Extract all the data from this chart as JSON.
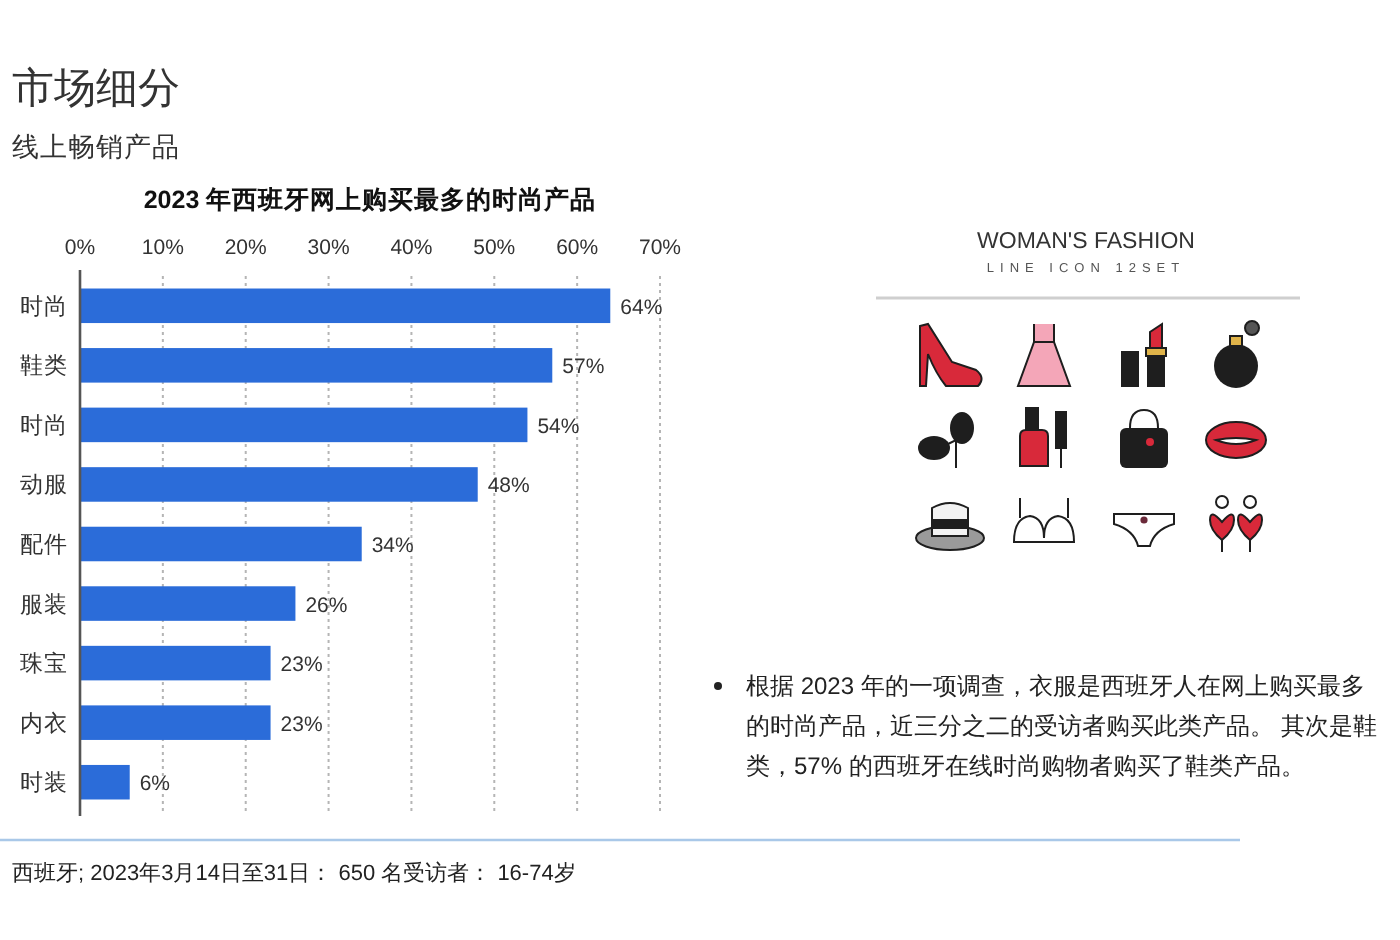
{
  "chart_data": {
    "type": "bar",
    "orientation": "horizontal",
    "title": "2023 年西班牙网上购买最多的时尚产品",
    "categories": [
      "时尚",
      "鞋类",
      "时尚",
      "动服",
      "配件",
      "服装",
      "珠宝",
      "内衣",
      "时装"
    ],
    "values": [
      64,
      57,
      54,
      48,
      34,
      26,
      23,
      23,
      6
    ],
    "color": "#2b6cd9",
    "value_labels": [
      "64%",
      "57%",
      "54%",
      "48%",
      "34%",
      "26%",
      "23%",
      "23%",
      "6%"
    ],
    "xlim": [
      0,
      70
    ],
    "xticks": [
      {
        "value": 0,
        "label": "0%"
      },
      {
        "value": 10,
        "label": "10%"
      },
      {
        "value": 20,
        "label": "20%"
      },
      {
        "value": 30,
        "label": "30%"
      },
      {
        "value": 40,
        "label": "40%"
      },
      {
        "value": 50,
        "label": "50%"
      },
      {
        "value": 60,
        "label": "60%"
      },
      {
        "value": 70,
        "label": "70%"
      }
    ],
    "grid": "x",
    "annotations": [
      "市场细分",
      "线上畅销产品",
      "西班牙; 2023年3月14日至31日： 650 名受访者： 16-74岁",
      "根据 2023 年的一项调查，衣服是西班牙人在网上购买最多的时尚产品，近三分之二的受访者购买此类产品。 其次是鞋类，57% 的西班牙在线时尚购物者购买了鞋类产品。",
      "WOMAN'S FASHION",
      "LINE ICON 12SET"
    ]
  }
}
